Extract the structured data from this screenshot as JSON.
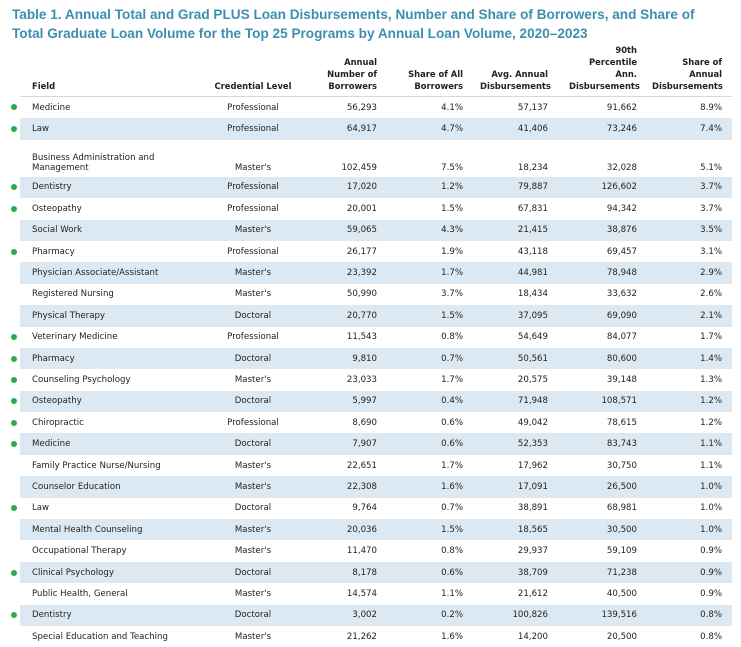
{
  "title": "Table 1. Annual Total and Grad PLUS Loan Disbursements, Number and Share of Borrowers, and Share of Total Graduate Loan Volume for the Top 25 Programs by Annual Loan Volume, 2020–2023",
  "table": {
    "columns": [
      "Field",
      "Credential Level",
      "Annual Number of Borrowers",
      "Share of All Borrowers",
      "Avg. Annual Disbursements",
      "90th Percentile Ann. Disbursements",
      "Share of Annual Disbursements"
    ],
    "rows": [
      [
        "Medicine",
        "Professional",
        "56,293",
        "4.1%",
        "57,137",
        "91,662",
        "8.9%"
      ],
      [
        "Law",
        "Professional",
        "64,917",
        "4.7%",
        "41,406",
        "73,246",
        "7.4%"
      ],
      [
        "Business Administration and Management",
        "Master's",
        "102,459",
        "7.5%",
        "18,234",
        "32,028",
        "5.1%"
      ],
      [
        "Dentistry",
        "Professional",
        "17,020",
        "1.2%",
        "79,887",
        "126,602",
        "3.7%"
      ],
      [
        "Osteopathy",
        "Professional",
        "20,001",
        "1.5%",
        "67,831",
        "94,342",
        "3.7%"
      ],
      [
        "Social Work",
        "Master's",
        "59,065",
        "4.3%",
        "21,415",
        "38,876",
        "3.5%"
      ],
      [
        "Pharmacy",
        "Professional",
        "26,177",
        "1.9%",
        "43,118",
        "69,457",
        "3.1%"
      ],
      [
        "Physician Associate/Assistant",
        "Master's",
        "23,392",
        "1.7%",
        "44,981",
        "78,948",
        "2.9%"
      ],
      [
        "Registered Nursing",
        "Master's",
        "50,990",
        "3.7%",
        "18,434",
        "33,632",
        "2.6%"
      ],
      [
        "Physical Therapy",
        "Doctoral",
        "20,770",
        "1.5%",
        "37,095",
        "69,090",
        "2.1%"
      ],
      [
        "Veterinary Medicine",
        "Professional",
        "11,543",
        "0.8%",
        "54,649",
        "84,077",
        "1.7%"
      ],
      [
        "Pharmacy",
        "Doctoral",
        "9,810",
        "0.7%",
        "50,561",
        "80,600",
        "1.4%"
      ],
      [
        "Counseling Psychology",
        "Master's",
        "23,033",
        "1.7%",
        "20,575",
        "39,148",
        "1.3%"
      ],
      [
        "Osteopathy",
        "Doctoral",
        "5,997",
        "0.4%",
        "71,948",
        "108,571",
        "1.2%"
      ],
      [
        "Chiropractic",
        "Professional",
        "8,690",
        "0.6%",
        "49,042",
        "78,615",
        "1.2%"
      ],
      [
        "Medicine",
        "Doctoral",
        "7,907",
        "0.6%",
        "52,353",
        "83,743",
        "1.1%"
      ],
      [
        "Family Practice Nurse/Nursing",
        "Master's",
        "22,651",
        "1.7%",
        "17,962",
        "30,750",
        "1.1%"
      ],
      [
        "Counselor Education",
        "Master's",
        "22,308",
        "1.6%",
        "17,091",
        "26,500",
        "1.0%"
      ],
      [
        "Law",
        "Doctoral",
        "9,764",
        "0.7%",
        "38,891",
        "68,981",
        "1.0%"
      ],
      [
        "Mental Health Counseling",
        "Master's",
        "20,036",
        "1.5%",
        "18,565",
        "30,500",
        "1.0%"
      ],
      [
        "Occupational Therapy",
        "Master's",
        "11,470",
        "0.8%",
        "29,937",
        "59,109",
        "0.9%"
      ],
      [
        "Clinical Psychology",
        "Doctoral",
        "8,178",
        "0.6%",
        "38,709",
        "71,238",
        "0.9%"
      ],
      [
        "Public Health, General",
        "Master's",
        "14,574",
        "1.1%",
        "21,612",
        "40,500",
        "0.9%"
      ],
      [
        "Dentistry",
        "Doctoral",
        "3,002",
        "0.2%",
        "100,826",
        "139,516",
        "0.8%"
      ],
      [
        "Special Education and Teaching",
        "Master's",
        "21,262",
        "1.6%",
        "14,200",
        "20,500",
        "0.8%"
      ]
    ],
    "marked": [
      true,
      true,
      false,
      true,
      true,
      false,
      true,
      false,
      false,
      false,
      true,
      true,
      true,
      true,
      true,
      true,
      false,
      false,
      true,
      false,
      false,
      true,
      false,
      true,
      false
    ]
  }
}
